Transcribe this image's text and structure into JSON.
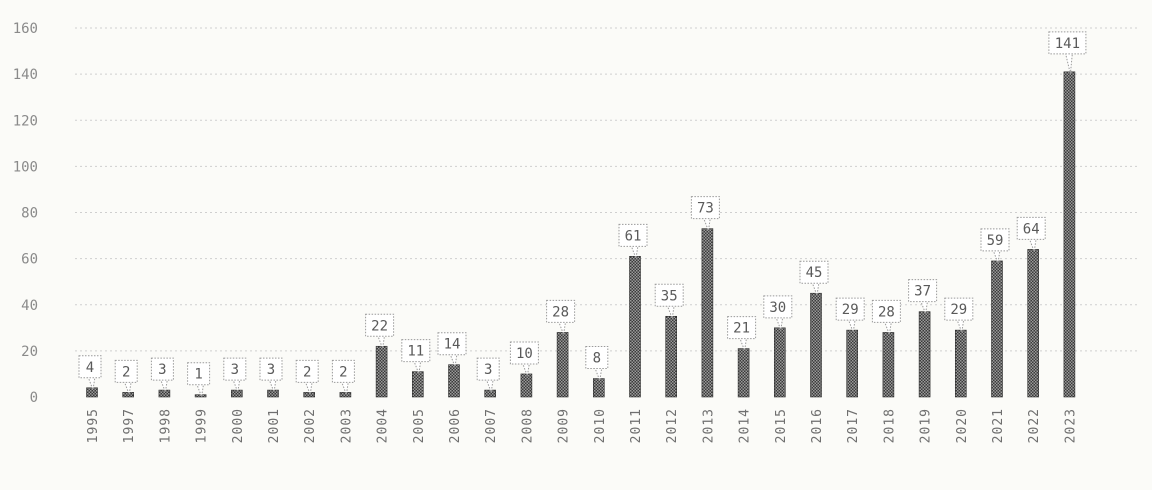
{
  "chart_data": {
    "type": "bar",
    "categories": [
      "1995",
      "1997",
      "1998",
      "1999",
      "2000",
      "2001",
      "2002",
      "2003",
      "2004",
      "2005",
      "2006",
      "2007",
      "2008",
      "2009",
      "2010",
      "2011",
      "2012",
      "2013",
      "2014",
      "2015",
      "2016",
      "2017",
      "2018",
      "2019",
      "2020",
      "2021",
      "2022",
      "2023"
    ],
    "values": [
      4,
      2,
      3,
      1,
      3,
      3,
      2,
      2,
      22,
      11,
      14,
      3,
      10,
      28,
      8,
      61,
      35,
      73,
      21,
      30,
      45,
      29,
      28,
      37,
      29,
      59,
      64,
      141
    ],
    "data_labels": [
      "4",
      "2",
      "3",
      "1",
      "3",
      "3",
      "2",
      "2",
      "22",
      "11",
      "14",
      "3",
      "10",
      "28",
      "8",
      "61",
      "35",
      "73",
      "21",
      "30",
      "45",
      "29",
      "28",
      "37",
      "29",
      "59",
      "64",
      "141"
    ],
    "title": "",
    "xlabel": "",
    "ylabel": "",
    "ylim": [
      0,
      160
    ],
    "yticks": [
      0,
      20,
      40,
      60,
      80,
      100,
      120,
      140,
      160
    ],
    "ytick_labels": [
      "0",
      "20",
      "40",
      "60",
      "80",
      "100",
      "120",
      "140",
      "160"
    ],
    "grid": true,
    "legend": "none",
    "colors": {
      "bar": "#2a2a2a",
      "grid": "#cfcfcf",
      "text": "#6f6f6f",
      "background": "#fbfbf8"
    }
  }
}
